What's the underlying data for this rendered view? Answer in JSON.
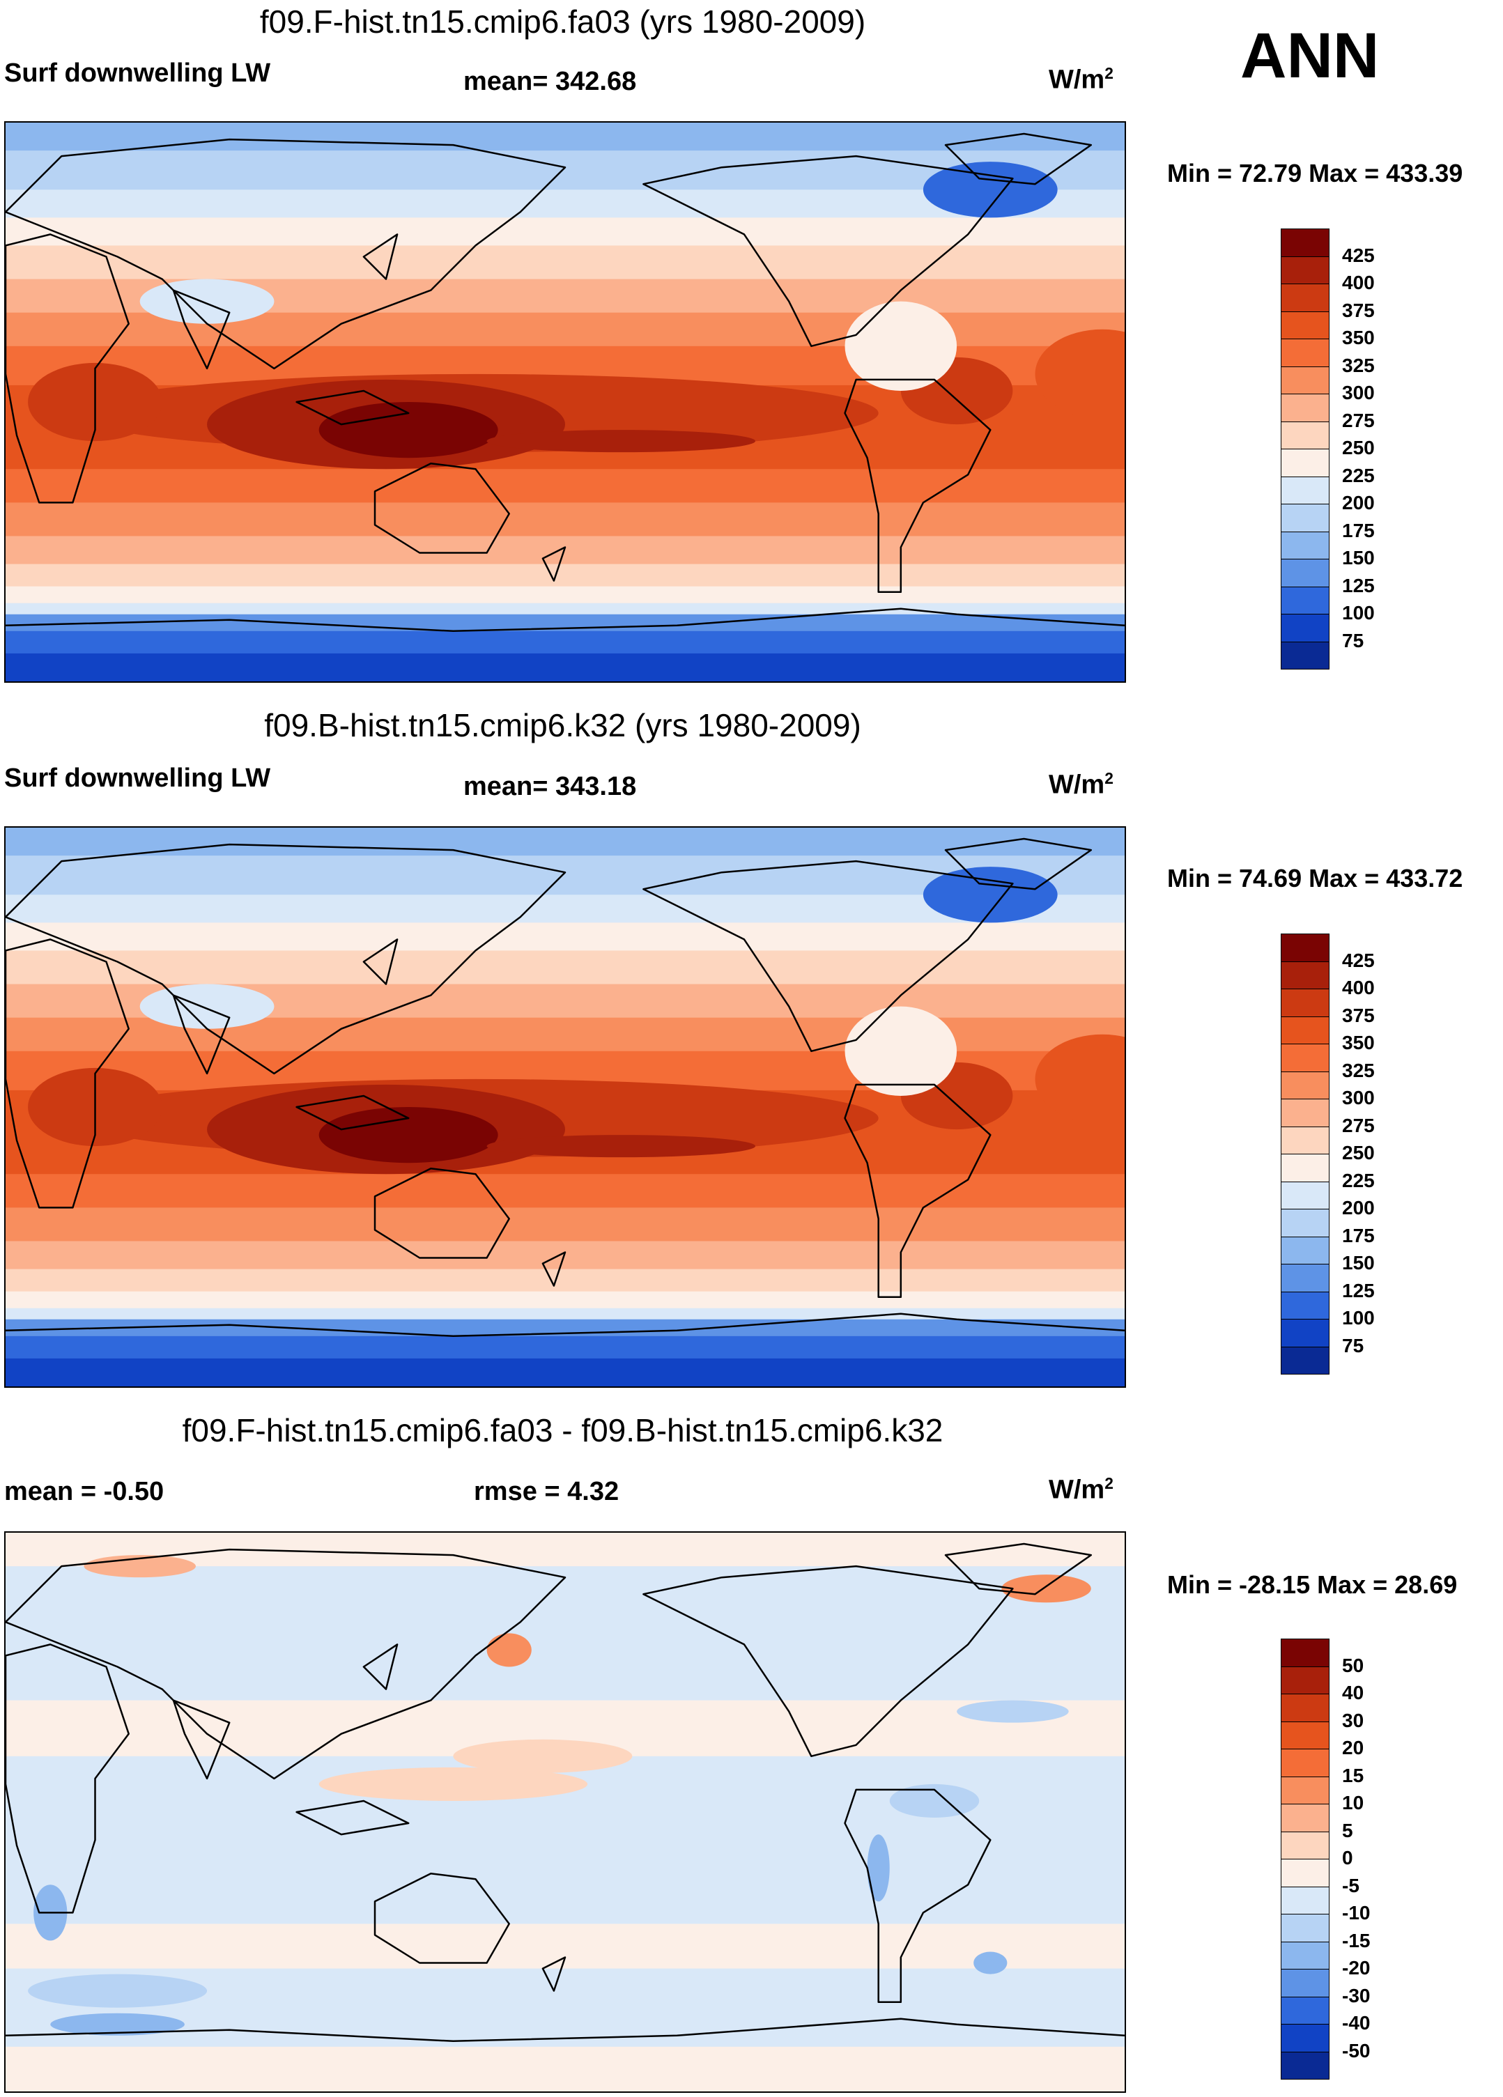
{
  "season": "ANN",
  "panels": [
    {
      "title": "f09.F-hist.tn15.cmip6.fa03 (yrs 1980-2009)",
      "variable": "Surf downwelling LW",
      "stat_text": "mean= 342.68",
      "units_base": "W/m",
      "units_exp": "2",
      "minmax": "Min =  72.79 Max = 433.39",
      "kind": "abs"
    },
    {
      "title": "f09.B-hist.tn15.cmip6.k32 (yrs 1980-2009)",
      "variable": "Surf downwelling LW",
      "stat_text": "mean= 343.18",
      "units_base": "W/m",
      "units_exp": "2",
      "minmax": "Min =  74.69 Max = 433.72",
      "kind": "abs"
    },
    {
      "title": "f09.F-hist.tn15.cmip6.fa03 - f09.B-hist.tn15.cmip6.k32",
      "variable": "mean =  -0.50",
      "stat_text": "rmse =   4.32",
      "units_base": "W/m",
      "units_exp": "2",
      "minmax": "Min = -28.15 Max =  28.69",
      "kind": "diff"
    }
  ],
  "chart_data": [
    {
      "type": "heatmap",
      "title": "f09.F-hist.tn15.cmip6.fa03 (yrs 1980-2009)",
      "field": "Surf downwelling LW",
      "units": "W/m2",
      "mean": 342.68,
      "min": 72.79,
      "max": 433.39,
      "colorbar_levels": [
        425,
        400,
        375,
        350,
        325,
        300,
        275,
        250,
        225,
        200,
        175,
        150,
        125,
        100,
        75
      ],
      "colorbar_colors": [
        "#7a0403",
        "#a8200b",
        "#cc3a12",
        "#e6541e",
        "#f46d37",
        "#f88e5e",
        "#fbb18e",
        "#fdd6bf",
        "#fcefe7",
        "#d9e8f8",
        "#b7d3f4",
        "#8cb7ee",
        "#5e93e6",
        "#2f68dc",
        "#1143c5",
        "#0a2a94"
      ],
      "lon_range": [
        0,
        360
      ],
      "lat_range": [
        -90,
        90
      ]
    },
    {
      "type": "heatmap",
      "title": "f09.B-hist.tn15.cmip6.k32 (yrs 1980-2009)",
      "field": "Surf downwelling LW",
      "units": "W/m2",
      "mean": 343.18,
      "min": 74.69,
      "max": 433.72,
      "colorbar_levels": [
        425,
        400,
        375,
        350,
        325,
        300,
        275,
        250,
        225,
        200,
        175,
        150,
        125,
        100,
        75
      ],
      "colorbar_colors": [
        "#7a0403",
        "#a8200b",
        "#cc3a12",
        "#e6541e",
        "#f46d37",
        "#f88e5e",
        "#fbb18e",
        "#fdd6bf",
        "#fcefe7",
        "#d9e8f8",
        "#b7d3f4",
        "#8cb7ee",
        "#5e93e6",
        "#2f68dc",
        "#1143c5",
        "#0a2a94"
      ],
      "lon_range": [
        0,
        360
      ],
      "lat_range": [
        -90,
        90
      ]
    },
    {
      "type": "heatmap",
      "title": "f09.F-hist.tn15.cmip6.fa03 - f09.B-hist.tn15.cmip6.k32",
      "field": "difference",
      "units": "W/m2",
      "mean": -0.5,
      "rmse": 4.32,
      "min": -28.15,
      "max": 28.69,
      "colorbar_levels": [
        50,
        40,
        30,
        20,
        15,
        10,
        5,
        0,
        -5,
        -10,
        -15,
        -20,
        -30,
        -40,
        -50
      ],
      "colorbar_colors": [
        "#7a0403",
        "#a8200b",
        "#cc3a12",
        "#e6541e",
        "#f46d37",
        "#f88e5e",
        "#fbb18e",
        "#fdd6bf",
        "#fcefe7",
        "#d9e8f8",
        "#b7d3f4",
        "#8cb7ee",
        "#5e93e6",
        "#2f68dc",
        "#1143c5",
        "#0a2a94"
      ],
      "lon_range": [
        0,
        360
      ],
      "lat_range": [
        -90,
        90
      ]
    }
  ]
}
